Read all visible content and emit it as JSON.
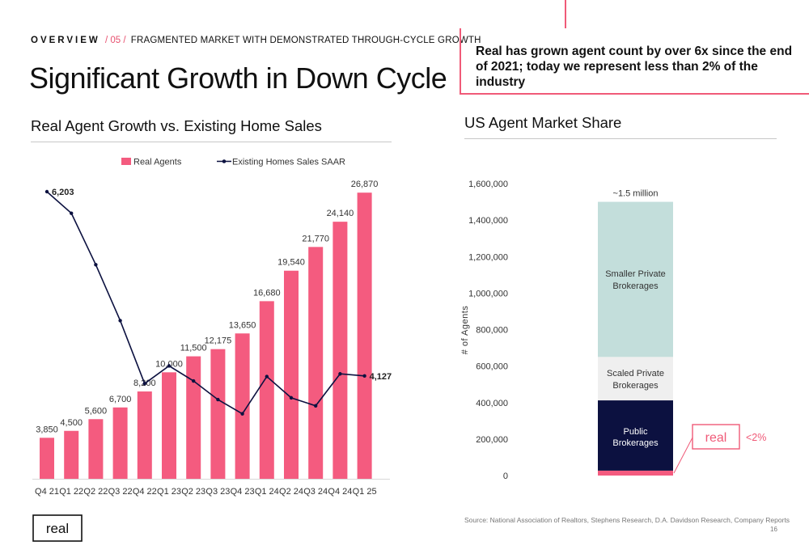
{
  "header": {
    "section": "OVERVIEW",
    "separator": "/ 05 /",
    "topic": "FRAGMENTED MARKET WITH DEMONSTRATED THROUGH-CYCLE GROWTH",
    "title": "Significant Growth in Down Cycle"
  },
  "callout": {
    "text": "Real has grown agent count by over 6x since the end of 2021; today we represent less than 2% of the industry"
  },
  "colors": {
    "pink": "#f45b7f",
    "navy": "#0c1140",
    "teal": "#c3dedb",
    "light_gray": "#efefef",
    "accent": "#f05a78"
  },
  "chart_data": [
    {
      "type": "bar",
      "title": "Real Agent Growth vs. Existing Home Sales",
      "categories": [
        "Q4 21",
        "Q1 22",
        "Q2 22",
        "Q3 22",
        "Q4 22",
        "Q1 23",
        "Q2 23",
        "Q3 23",
        "Q4 23",
        "Q1 24",
        "Q2 24",
        "Q3 24",
        "Q4 24",
        "Q1 25"
      ],
      "series": [
        {
          "name": "Real Agents",
          "kind": "bar",
          "values": [
            3850,
            4500,
            5600,
            6700,
            8200,
            10000,
            11500,
            12175,
            13650,
            16680,
            19540,
            21770,
            24140,
            26870
          ],
          "labels": [
            "3,850",
            "4,500",
            "5,600",
            "6,700",
            "8,200",
            "10,000",
            "11,500",
            "12,175",
            "13,650",
            "16,680",
            "19,540",
            "21,770",
            "24,140",
            "26,870"
          ]
        },
        {
          "name": "Existing Homes Sales SAAR",
          "kind": "line",
          "values": [
            6203,
            5960,
            5380,
            4750,
            4040,
            4240,
            4070,
            3860,
            3700,
            4120,
            3880,
            3790,
            4150,
            4127
          ],
          "labels": [
            "6,203",
            "",
            "",
            "",
            "",
            "",
            "",
            "",
            "",
            "",
            "",
            "",
            "",
            "4,127"
          ]
        }
      ],
      "bar_ylim": [
        0,
        30000
      ],
      "line_ylim": [
        3000,
        6600
      ],
      "legend_position": "top-center",
      "grid": false
    },
    {
      "type": "bar",
      "stacked": true,
      "title": "US Agent Market Share",
      "ylabel": "# of Agents",
      "ylim": [
        0,
        1600000
      ],
      "yticks": [
        0,
        200000,
        400000,
        600000,
        800000,
        1000000,
        1200000,
        1400000,
        1600000
      ],
      "ytick_labels": [
        "0",
        "200,000",
        "400,000",
        "600,000",
        "800,000",
        "1,000,000",
        "1,200,000",
        "1,400,000",
        "1,600,000"
      ],
      "total_label": "~1.5 million",
      "segments": [
        {
          "name": "Real",
          "value": 27000,
          "color_key": "pink"
        },
        {
          "name": "Public Brokerages",
          "value": 385000,
          "color_key": "navy"
        },
        {
          "name": "Scaled Private Brokerages",
          "value": 238000,
          "color_key": "light_gray"
        },
        {
          "name": "Smaller Private Brokerages",
          "value": 850000,
          "color_key": "teal"
        }
      ],
      "segment_labels": {
        "public": [
          "Public",
          "Brokerages"
        ],
        "scaled": [
          "Scaled Private",
          "Brokerages"
        ],
        "smaller": [
          "Smaller Private",
          "Brokerages"
        ]
      },
      "real_callout": {
        "logo": "real",
        "share_label": "<2%"
      },
      "grid": false
    }
  ],
  "footer": {
    "source": "Source: National Association of Realtors, Stephens Research, D.A. Davidson Research, Company Reports",
    "page_number": "16",
    "logo": "real"
  }
}
